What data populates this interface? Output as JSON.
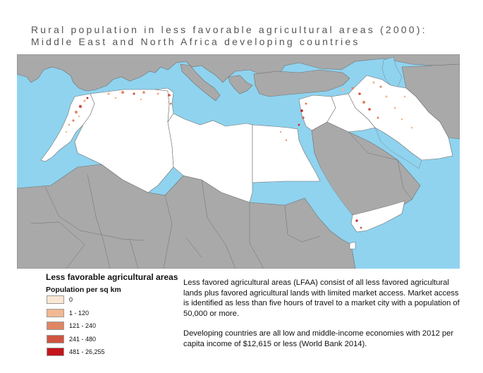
{
  "title": {
    "line1": "Rural population in less favorable agricultural areas (2000):",
    "line2": "Middle East and North Africa developing countries"
  },
  "legend": {
    "title": "Less favorable agricultural areas",
    "subtitle": "Population per sq km",
    "items": [
      {
        "label": "0",
        "color": "#fbe8d4"
      },
      {
        "label": "1 - 120",
        "color": "#f1b892"
      },
      {
        "label": "121 - 240",
        "color": "#e08563"
      },
      {
        "label": "241 - 480",
        "color": "#cf5540"
      },
      {
        "label": "481 - 26,255",
        "color": "#c2161b"
      }
    ]
  },
  "description": {
    "paragraph1": "Less favored agricultural areas (LFAA) consist of all less favored agricultural lands plus favored agricultural lands with limited market access. Market access is identified as less than five hours of travel to a market city with a population of 50,000 or more.",
    "paragraph2": "Developing countries are all low and middle-income economies with 2012 per capita income of $12,615 or less (World Bank 2014)."
  },
  "colors": {
    "water": "#8fd3ef",
    "other_land": "#a9a9a9",
    "borders": "#6f6f6f",
    "mena_land": "#ffffff"
  }
}
